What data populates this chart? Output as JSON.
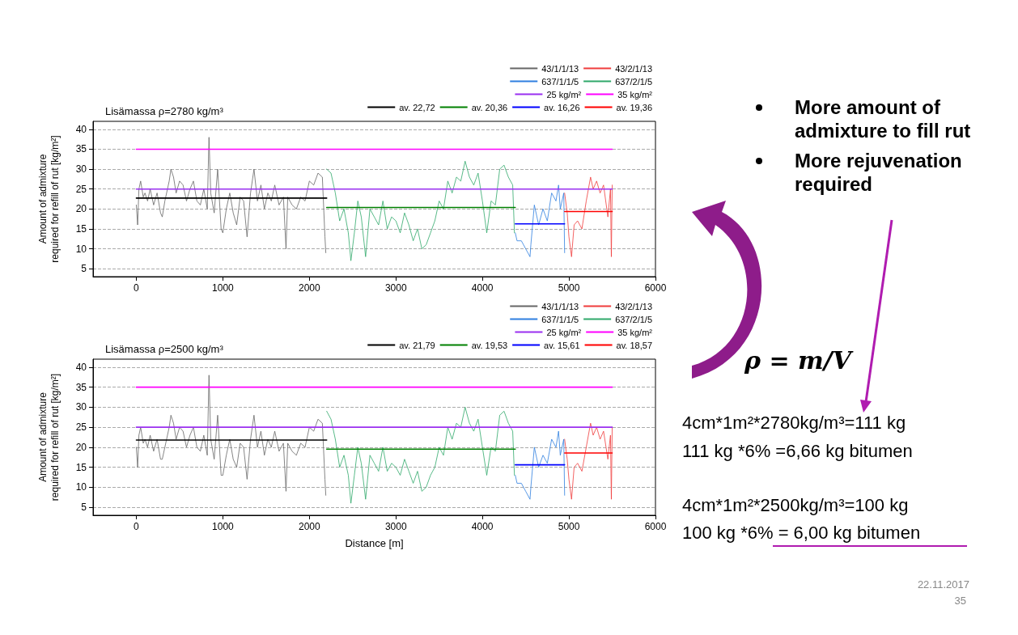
{
  "chart_data": [
    {
      "type": "line",
      "title": "Lisämassa ρ=2780 kg/m³",
      "ylabel": "Amount of admixture\nrequired for refill of rut [kg/m²]",
      "xlim": [
        -500,
        6000
      ],
      "xticks": [
        0,
        1000,
        2000,
        3000,
        4000,
        5000,
        6000
      ],
      "ylim": [
        3,
        42
      ],
      "yticks": [
        5,
        10,
        15,
        20,
        25,
        30,
        35,
        40
      ],
      "grid": "y",
      "legend": "top right",
      "marker": "none",
      "line_style": "solid",
      "series": [
        {
          "name": "43/1/1/13",
          "color": "#666666",
          "x": [
            0,
            15,
            30,
            50,
            80,
            100,
            130,
            160,
            200,
            240,
            280,
            300,
            330,
            380,
            400,
            430,
            460,
            500,
            540,
            580,
            620,
            660,
            700,
            740,
            780,
            820,
            840,
            860,
            900,
            940,
            980,
            1000,
            1040,
            1080,
            1120,
            1160,
            1200,
            1240,
            1280,
            1320,
            1360,
            1400,
            1440,
            1480,
            1520,
            1560,
            1600,
            1650,
            1700,
            1730,
            1750,
            1800,
            1850,
            1900,
            1950,
            2000,
            2050,
            2100,
            2150,
            2180,
            2190
          ],
          "values": [
            21,
            16,
            25,
            27,
            23,
            24,
            22,
            25,
            21,
            24,
            19,
            18,
            22,
            27,
            30,
            28,
            24,
            27,
            26,
            22,
            25,
            27,
            22,
            21,
            25,
            20,
            38,
            24,
            19,
            30,
            15,
            14,
            20,
            24,
            19,
            16,
            23,
            22,
            13,
            24,
            30,
            22,
            26,
            20,
            24,
            22,
            26,
            21,
            23,
            10,
            23,
            21,
            20,
            23,
            22,
            27,
            26,
            29,
            28,
            13,
            9
          ]
        },
        {
          "name": "43/2/1/13",
          "color": "#f03c3c",
          "x": [
            4950,
            4980,
            5000,
            5030,
            5060,
            5100,
            5150,
            5200,
            5250,
            5280,
            5320,
            5360,
            5400,
            5450,
            5480,
            5490,
            5500
          ],
          "values": [
            24,
            19,
            13,
            8,
            16,
            17,
            15,
            22,
            28,
            25,
            27,
            24,
            26,
            18,
            25,
            8,
            26
          ]
        },
        {
          "name": "637/1/1/5",
          "color": "#2f7fe0",
          "x": [
            4380,
            4400,
            4450,
            4500,
            4550,
            4560,
            4600,
            4650,
            4700,
            4750,
            4800,
            4850,
            4880,
            4900,
            4940,
            4950
          ],
          "values": [
            14,
            12,
            12,
            10,
            8,
            11,
            21,
            16,
            20,
            17,
            24,
            22,
            26,
            20,
            24,
            9
          ]
        },
        {
          "name": "637/2/1/5",
          "color": "#2fa86a",
          "x": [
            2200,
            2250,
            2300,
            2350,
            2400,
            2450,
            2480,
            2520,
            2560,
            2600,
            2650,
            2700,
            2750,
            2800,
            2850,
            2900,
            2950,
            3000,
            3050,
            3100,
            3150,
            3200,
            3250,
            3300,
            3350,
            3400,
            3450,
            3500,
            3550,
            3600,
            3650,
            3700,
            3750,
            3800,
            3850,
            3900,
            3950,
            4000,
            4050,
            4100,
            4150,
            4200,
            4250,
            4300,
            4350,
            4370
          ],
          "values": [
            30,
            29,
            24,
            17,
            20,
            14,
            7,
            14,
            22,
            18,
            8,
            20,
            18,
            16,
            22,
            15,
            18,
            17,
            14,
            19,
            16,
            12,
            15,
            10,
            11,
            14,
            17,
            22,
            20,
            27,
            24,
            28,
            27,
            32,
            28,
            26,
            29,
            22,
            14,
            22,
            21,
            30,
            31,
            28,
            26,
            14
          ]
        },
        {
          "name": "25 kg/m²",
          "color": "#9a2ff0",
          "x": [
            0,
            5500
          ],
          "values": [
            25,
            25
          ]
        },
        {
          "name": "35 kg/m²",
          "color": "#ff00ff",
          "x": [
            0,
            5500
          ],
          "values": [
            35,
            35
          ]
        },
        {
          "name": "av. 22,72",
          "color": "#000000",
          "x": [
            0,
            2200
          ],
          "values": [
            22.72,
            22.72
          ]
        },
        {
          "name": "av. 20,36",
          "color": "#008000",
          "x": [
            2200,
            4380
          ],
          "values": [
            20.36,
            20.36
          ]
        },
        {
          "name": "av. 16,26",
          "color": "#0000ff",
          "x": [
            4380,
            4950
          ],
          "values": [
            16.26,
            16.26
          ]
        },
        {
          "name": "av. 19,36",
          "color": "#ff0000",
          "x": [
            4950,
            5500
          ],
          "values": [
            19.36,
            19.36
          ]
        }
      ]
    },
    {
      "type": "line",
      "title": "Lisämassa ρ=2500 kg/m³",
      "xlabel": "Distance [m]",
      "ylabel": "Amount of admixture\nrequired for refill of rut [kg/m²]",
      "xlim": [
        -500,
        6000
      ],
      "xticks": [
        0,
        1000,
        2000,
        3000,
        4000,
        5000,
        6000
      ],
      "ylim": [
        3,
        42
      ],
      "yticks": [
        5,
        10,
        15,
        20,
        25,
        30,
        35,
        40
      ],
      "grid": "y",
      "legend": "top right",
      "marker": "none",
      "line_style": "solid",
      "series": [
        {
          "name": "43/1/1/13",
          "color": "#666666",
          "x": [
            0,
            15,
            30,
            50,
            80,
            100,
            130,
            160,
            200,
            240,
            280,
            300,
            330,
            380,
            400,
            430,
            460,
            500,
            540,
            580,
            620,
            660,
            700,
            740,
            780,
            820,
            840,
            860,
            900,
            940,
            980,
            1000,
            1040,
            1080,
            1120,
            1160,
            1200,
            1240,
            1280,
            1320,
            1360,
            1400,
            1440,
            1480,
            1520,
            1560,
            1600,
            1650,
            1700,
            1730,
            1750,
            1800,
            1850,
            1900,
            1950,
            2000,
            2050,
            2100,
            2150,
            2180,
            2190
          ],
          "values": [
            20,
            15,
            23,
            25,
            21,
            22,
            20,
            23,
            19,
            22,
            17,
            17,
            20,
            25,
            28,
            26,
            22,
            25,
            24,
            20,
            23,
            25,
            20,
            19,
            23,
            18,
            38,
            22,
            17,
            28,
            13,
            13,
            18,
            22,
            17,
            15,
            21,
            20,
            12,
            22,
            28,
            20,
            24,
            18,
            22,
            20,
            24,
            19,
            21,
            9,
            21,
            19,
            18,
            21,
            20,
            25,
            24,
            27,
            26,
            12,
            8
          ]
        },
        {
          "name": "43/2/1/13",
          "color": "#f03c3c",
          "x": [
            4950,
            4980,
            5000,
            5030,
            5060,
            5100,
            5150,
            5200,
            5250,
            5280,
            5320,
            5360,
            5400,
            5450,
            5480,
            5490,
            5500
          ],
          "values": [
            22,
            17,
            12,
            7,
            15,
            16,
            14,
            20,
            26,
            23,
            25,
            22,
            24,
            17,
            23,
            7,
            25
          ]
        },
        {
          "name": "637/1/1/5",
          "color": "#2f7fe0",
          "x": [
            4380,
            4400,
            4450,
            4500,
            4550,
            4560,
            4600,
            4650,
            4700,
            4750,
            4800,
            4850,
            4880,
            4900,
            4940,
            4950
          ],
          "values": [
            13,
            11,
            11,
            9,
            7,
            10,
            20,
            15,
            18,
            16,
            22,
            20,
            24,
            18,
            22,
            8
          ]
        },
        {
          "name": "637/2/1/5",
          "color": "#2fa86a",
          "x": [
            2200,
            2250,
            2300,
            2350,
            2400,
            2450,
            2480,
            2520,
            2560,
            2600,
            2650,
            2700,
            2750,
            2800,
            2850,
            2900,
            2950,
            3000,
            3050,
            3100,
            3150,
            3200,
            3250,
            3300,
            3350,
            3400,
            3450,
            3500,
            3550,
            3600,
            3650,
            3700,
            3750,
            3800,
            3850,
            3900,
            3950,
            4000,
            4050,
            4100,
            4150,
            4200,
            4250,
            4300,
            4350,
            4370
          ],
          "values": [
            29,
            27,
            22,
            15,
            18,
            13,
            6,
            13,
            20,
            16,
            7,
            18,
            16,
            14,
            20,
            14,
            16,
            15,
            13,
            17,
            14,
            11,
            14,
            9,
            10,
            13,
            15,
            20,
            18,
            25,
            22,
            26,
            25,
            30,
            26,
            24,
            27,
            20,
            13,
            20,
            19,
            28,
            29,
            26,
            24,
            13
          ]
        },
        {
          "name": "25 kg/m²",
          "color": "#9a2ff0",
          "x": [
            0,
            5500
          ],
          "values": [
            25,
            25
          ]
        },
        {
          "name": "35 kg/m²",
          "color": "#ff00ff",
          "x": [
            0,
            5500
          ],
          "values": [
            35,
            35
          ]
        },
        {
          "name": "av. 21,79",
          "color": "#000000",
          "x": [
            0,
            2200
          ],
          "values": [
            21.79,
            21.79
          ]
        },
        {
          "name": "av. 19,53",
          "color": "#008000",
          "x": [
            2200,
            4380
          ],
          "values": [
            19.53,
            19.53
          ]
        },
        {
          "name": "av. 15,61",
          "color": "#0000ff",
          "x": [
            4380,
            4950
          ],
          "values": [
            15.61,
            15.61
          ]
        },
        {
          "name": "av. 18,57",
          "color": "#ff0000",
          "x": [
            4950,
            5500
          ],
          "values": [
            18.57,
            18.57
          ]
        }
      ]
    },
    {
      "type": "other",
      "annotations": [
        "More amount of admixture to fill rut",
        "More rejuvenation required",
        "ρ = m/V",
        "4cm*1m²*2780kg/m³=111 kg",
        "111 kg *6% =6,66 kg bitumen",
        "4cm*1m²*2500kg/m³=100 kg",
        "100 kg *6% = 6,00 kg bitumen",
        "22.11.2017",
        "35"
      ]
    }
  ]
}
